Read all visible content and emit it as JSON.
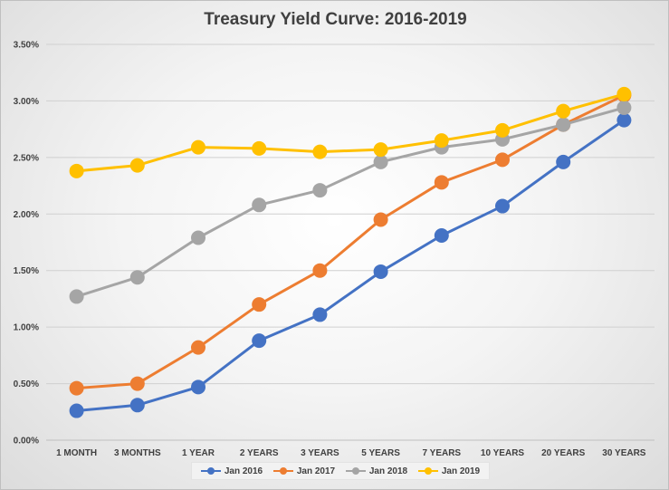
{
  "chart_data": {
    "type": "line",
    "title": "Treasury Yield Curve: 2016-2019",
    "xlabel": "",
    "ylabel": "",
    "categories": [
      "1 MONTH",
      "3 MONTHS",
      "1 YEAR",
      "2 YEARS",
      "3 YEARS",
      "5 YEARS",
      "7 YEARS",
      "10 YEARS",
      "20 YEARS",
      "30 YEARS"
    ],
    "y_ticks": [
      "0.00%",
      "0.50%",
      "1.00%",
      "1.50%",
      "2.00%",
      "2.50%",
      "3.00%",
      "3.50%"
    ],
    "ylim": [
      0,
      3.5
    ],
    "grid": true,
    "legend_position": "bottom",
    "series": [
      {
        "name": "Jan 2016",
        "color": "#4472c4",
        "values": [
          0.26,
          0.31,
          0.47,
          0.88,
          1.11,
          1.49,
          1.81,
          2.07,
          2.46,
          2.83
        ]
      },
      {
        "name": "Jan 2017",
        "color": "#ed7d31",
        "values": [
          0.46,
          0.5,
          0.82,
          1.2,
          1.5,
          1.95,
          2.28,
          2.48,
          2.79,
          3.05
        ]
      },
      {
        "name": "Jan 2018",
        "color": "#a5a5a5",
        "values": [
          1.27,
          1.44,
          1.79,
          2.08,
          2.21,
          2.46,
          2.59,
          2.66,
          2.79,
          2.94
        ]
      },
      {
        "name": "Jan 2019",
        "color": "#ffc000",
        "values": [
          2.38,
          2.43,
          2.59,
          2.58,
          2.55,
          2.57,
          2.65,
          2.74,
          2.91,
          3.06
        ]
      }
    ]
  }
}
